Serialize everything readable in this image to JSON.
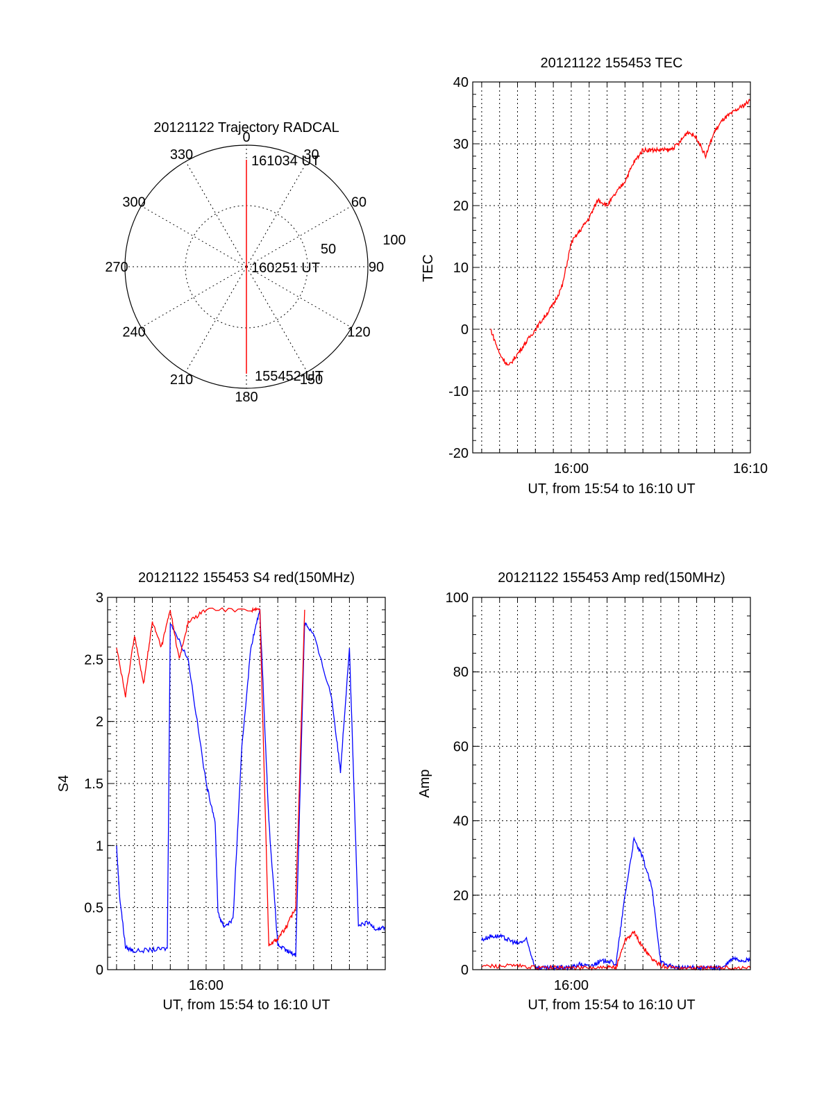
{
  "chart_data": [
    {
      "type": "polar",
      "title": "20121122 Trajectory RADCAL",
      "azimuth_labels": [
        "0",
        "30",
        "60",
        "90",
        "120",
        "150",
        "180",
        "210",
        "240",
        "270",
        "300",
        "330"
      ],
      "radius_labels": [
        "50",
        "100"
      ],
      "rlim": [
        0,
        100
      ],
      "grid": true,
      "annotations": [
        {
          "label": "161034 UT",
          "az": 0,
          "r": 90
        },
        {
          "label": "160251 UT",
          "az": 0,
          "r": 0
        },
        {
          "label": "155452 UT",
          "az": 180,
          "r": 90
        }
      ],
      "series": [
        {
          "color": "#ff0000",
          "points": [
            [
              0,
              88
            ],
            [
              0,
              40
            ],
            [
              0,
              3
            ],
            [
              180,
              3
            ],
            [
              180,
              40
            ],
            [
              180,
              88
            ]
          ]
        }
      ]
    },
    {
      "type": "line",
      "title": "20121122 155453 TEC",
      "xlabel": "UT, from 15:54 to 16:10 UT",
      "ylabel": "TEC",
      "xlim": [
        "15:54:30",
        "16:10:00"
      ],
      "ylim": [
        -20,
        40
      ],
      "x_ticks": [
        "16:00",
        "16:10"
      ],
      "y_ticks": [
        "-20",
        "-10",
        "0",
        "10",
        "20",
        "30",
        "40"
      ],
      "grid": true,
      "series": [
        {
          "color": "#ff0000",
          "x": [
            "15:55:30",
            "15:56:00",
            "15:56:30",
            "15:57:00",
            "15:57:30",
            "15:58:00",
            "15:58:30",
            "15:59:00",
            "15:59:30",
            "16:00:00",
            "16:00:30",
            "16:01:00",
            "16:01:30",
            "16:02:00",
            "16:02:30",
            "16:03:00",
            "16:03:30",
            "16:04:00",
            "16:04:30",
            "16:05:00",
            "16:05:30",
            "16:06:00",
            "16:06:30",
            "16:07:00",
            "16:07:30",
            "16:08:00",
            "16:08:30",
            "16:09:00",
            "16:09:30",
            "16:10:00"
          ],
          "y": [
            0,
            -4,
            -6,
            -4,
            -2,
            0,
            2,
            4,
            7,
            14,
            16,
            18,
            21,
            20,
            22,
            24,
            27,
            29,
            29,
            29,
            29,
            30,
            32,
            31,
            28,
            32,
            34,
            35,
            36,
            37
          ]
        }
      ]
    },
    {
      "type": "line",
      "title": "20121122 155453 S4 red(150MHz)",
      "xlabel": "UT, from 15:54 to 16:10 UT",
      "ylabel": "S4",
      "xlim": [
        "15:54:30",
        "16:10:00"
      ],
      "ylim": [
        0,
        3
      ],
      "x_ticks": [
        "16:00"
      ],
      "y_ticks": [
        "0",
        "0.5",
        "1",
        "1.5",
        "2",
        "2.5",
        "3"
      ],
      "grid": true,
      "series": [
        {
          "color": "#0000ff",
          "x": [
            "15:55:00",
            "15:55:10",
            "15:55:30",
            "15:56:00",
            "15:57:00",
            "15:57:50",
            "15:58:00",
            "15:59:00",
            "16:00:00",
            "16:00:30",
            "16:00:40",
            "16:01:00",
            "16:01:30",
            "16:02:00",
            "16:02:30",
            "16:03:00",
            "16:03:30",
            "16:04:00",
            "16:04:30",
            "16:05:00",
            "16:05:30",
            "16:06:00",
            "16:07:00",
            "16:07:30",
            "16:08:00",
            "16:08:30",
            "16:09:00",
            "16:09:30",
            "16:10:00"
          ],
          "y": [
            1.0,
            0.6,
            0.18,
            0.15,
            0.16,
            0.17,
            2.8,
            2.5,
            1.5,
            1.2,
            0.45,
            0.35,
            0.4,
            1.8,
            2.6,
            2.9,
            1.2,
            0.2,
            0.15,
            0.12,
            2.8,
            2.7,
            2.2,
            1.6,
            2.6,
            0.35,
            0.38,
            0.33,
            0.34
          ]
        },
        {
          "color": "#ff0000",
          "x": [
            "15:55:00",
            "15:55:30",
            "15:56:00",
            "15:56:30",
            "15:57:00",
            "15:57:30",
            "15:58:00",
            "15:58:30",
            "15:59:00",
            "16:00:00",
            "16:02:30",
            "16:03:00",
            "16:03:30",
            "16:04:00",
            "16:04:30",
            "16:05:00",
            "16:05:30"
          ],
          "y": [
            2.6,
            2.2,
            2.7,
            2.3,
            2.8,
            2.6,
            2.9,
            2.5,
            2.8,
            2.9,
            2.9,
            2.9,
            0.2,
            0.25,
            0.35,
            0.5,
            2.9
          ]
        }
      ]
    },
    {
      "type": "line",
      "title": "20121122 155453 Amp red(150MHz)",
      "xlabel": "UT, from 15:54 to 16:10 UT",
      "ylabel": "Amp",
      "xlim": [
        "15:54:30",
        "16:10:00"
      ],
      "ylim": [
        0,
        100
      ],
      "x_ticks": [
        "16:00"
      ],
      "y_ticks": [
        "0",
        "20",
        "40",
        "60",
        "80",
        "100"
      ],
      "grid": true,
      "series": [
        {
          "color": "#0000ff",
          "x": [
            "15:55:00",
            "15:55:30",
            "15:56:00",
            "15:56:30",
            "15:57:00",
            "15:57:30",
            "15:58:00",
            "15:58:30",
            "15:59:00",
            "15:59:30",
            "16:00:00",
            "16:00:30",
            "16:01:00",
            "16:01:30",
            "16:02:00",
            "16:02:30",
            "16:03:00",
            "16:03:30",
            "16:04:00",
            "16:04:30",
            "16:05:00",
            "16:05:30",
            "16:06:00",
            "16:06:30",
            "16:07:00",
            "16:07:30",
            "16:08:00",
            "16:08:30",
            "16:09:00",
            "16:09:30",
            "16:10:00"
          ],
          "y": [
            8,
            9,
            9,
            8,
            7,
            8,
            0.5,
            0.4,
            0.5,
            0.6,
            0.5,
            1.5,
            0.8,
            2.0,
            2.5,
            1.5,
            20,
            35,
            30,
            22,
            2,
            1,
            0.5,
            0.5,
            0.6,
            0.5,
            0.5,
            0.6,
            3,
            2.5,
            2.5
          ]
        },
        {
          "color": "#ff0000",
          "x": [
            "15:55:00",
            "15:56:00",
            "15:57:00",
            "15:58:00",
            "15:59:00",
            "16:00:00",
            "16:01:00",
            "16:02:00",
            "16:02:30",
            "16:03:00",
            "16:03:30",
            "16:04:00",
            "16:04:30",
            "16:05:00",
            "16:06:00",
            "16:07:00",
            "16:08:00",
            "16:09:00",
            "16:10:00"
          ],
          "y": [
            1,
            1,
            1,
            0.5,
            0.5,
            0.5,
            0.5,
            0.5,
            0.5,
            8,
            10,
            6,
            3,
            1,
            0.5,
            0.5,
            0.5,
            0.5,
            0.5
          ]
        }
      ]
    }
  ]
}
